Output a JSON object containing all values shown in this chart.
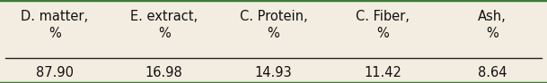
{
  "columns": [
    "D. matter,\n%",
    "E. extract,\n%",
    "C. Protein,\n%",
    "C. Fiber,\n%",
    "Ash,\n%"
  ],
  "values": [
    "87.90",
    "16.98",
    "14.93",
    "11.42",
    "8.64"
  ],
  "background_color": "#f2ede0",
  "border_top_bottom_color": "#3a7d34",
  "line_color": "#222222",
  "text_color": "#111111",
  "header_fontsize": 10.5,
  "value_fontsize": 10.5,
  "border_linewidth": 2.5,
  "sep_linewidth": 1.0,
  "fig_width": 6.09,
  "fig_height": 0.93,
  "dpi": 100
}
